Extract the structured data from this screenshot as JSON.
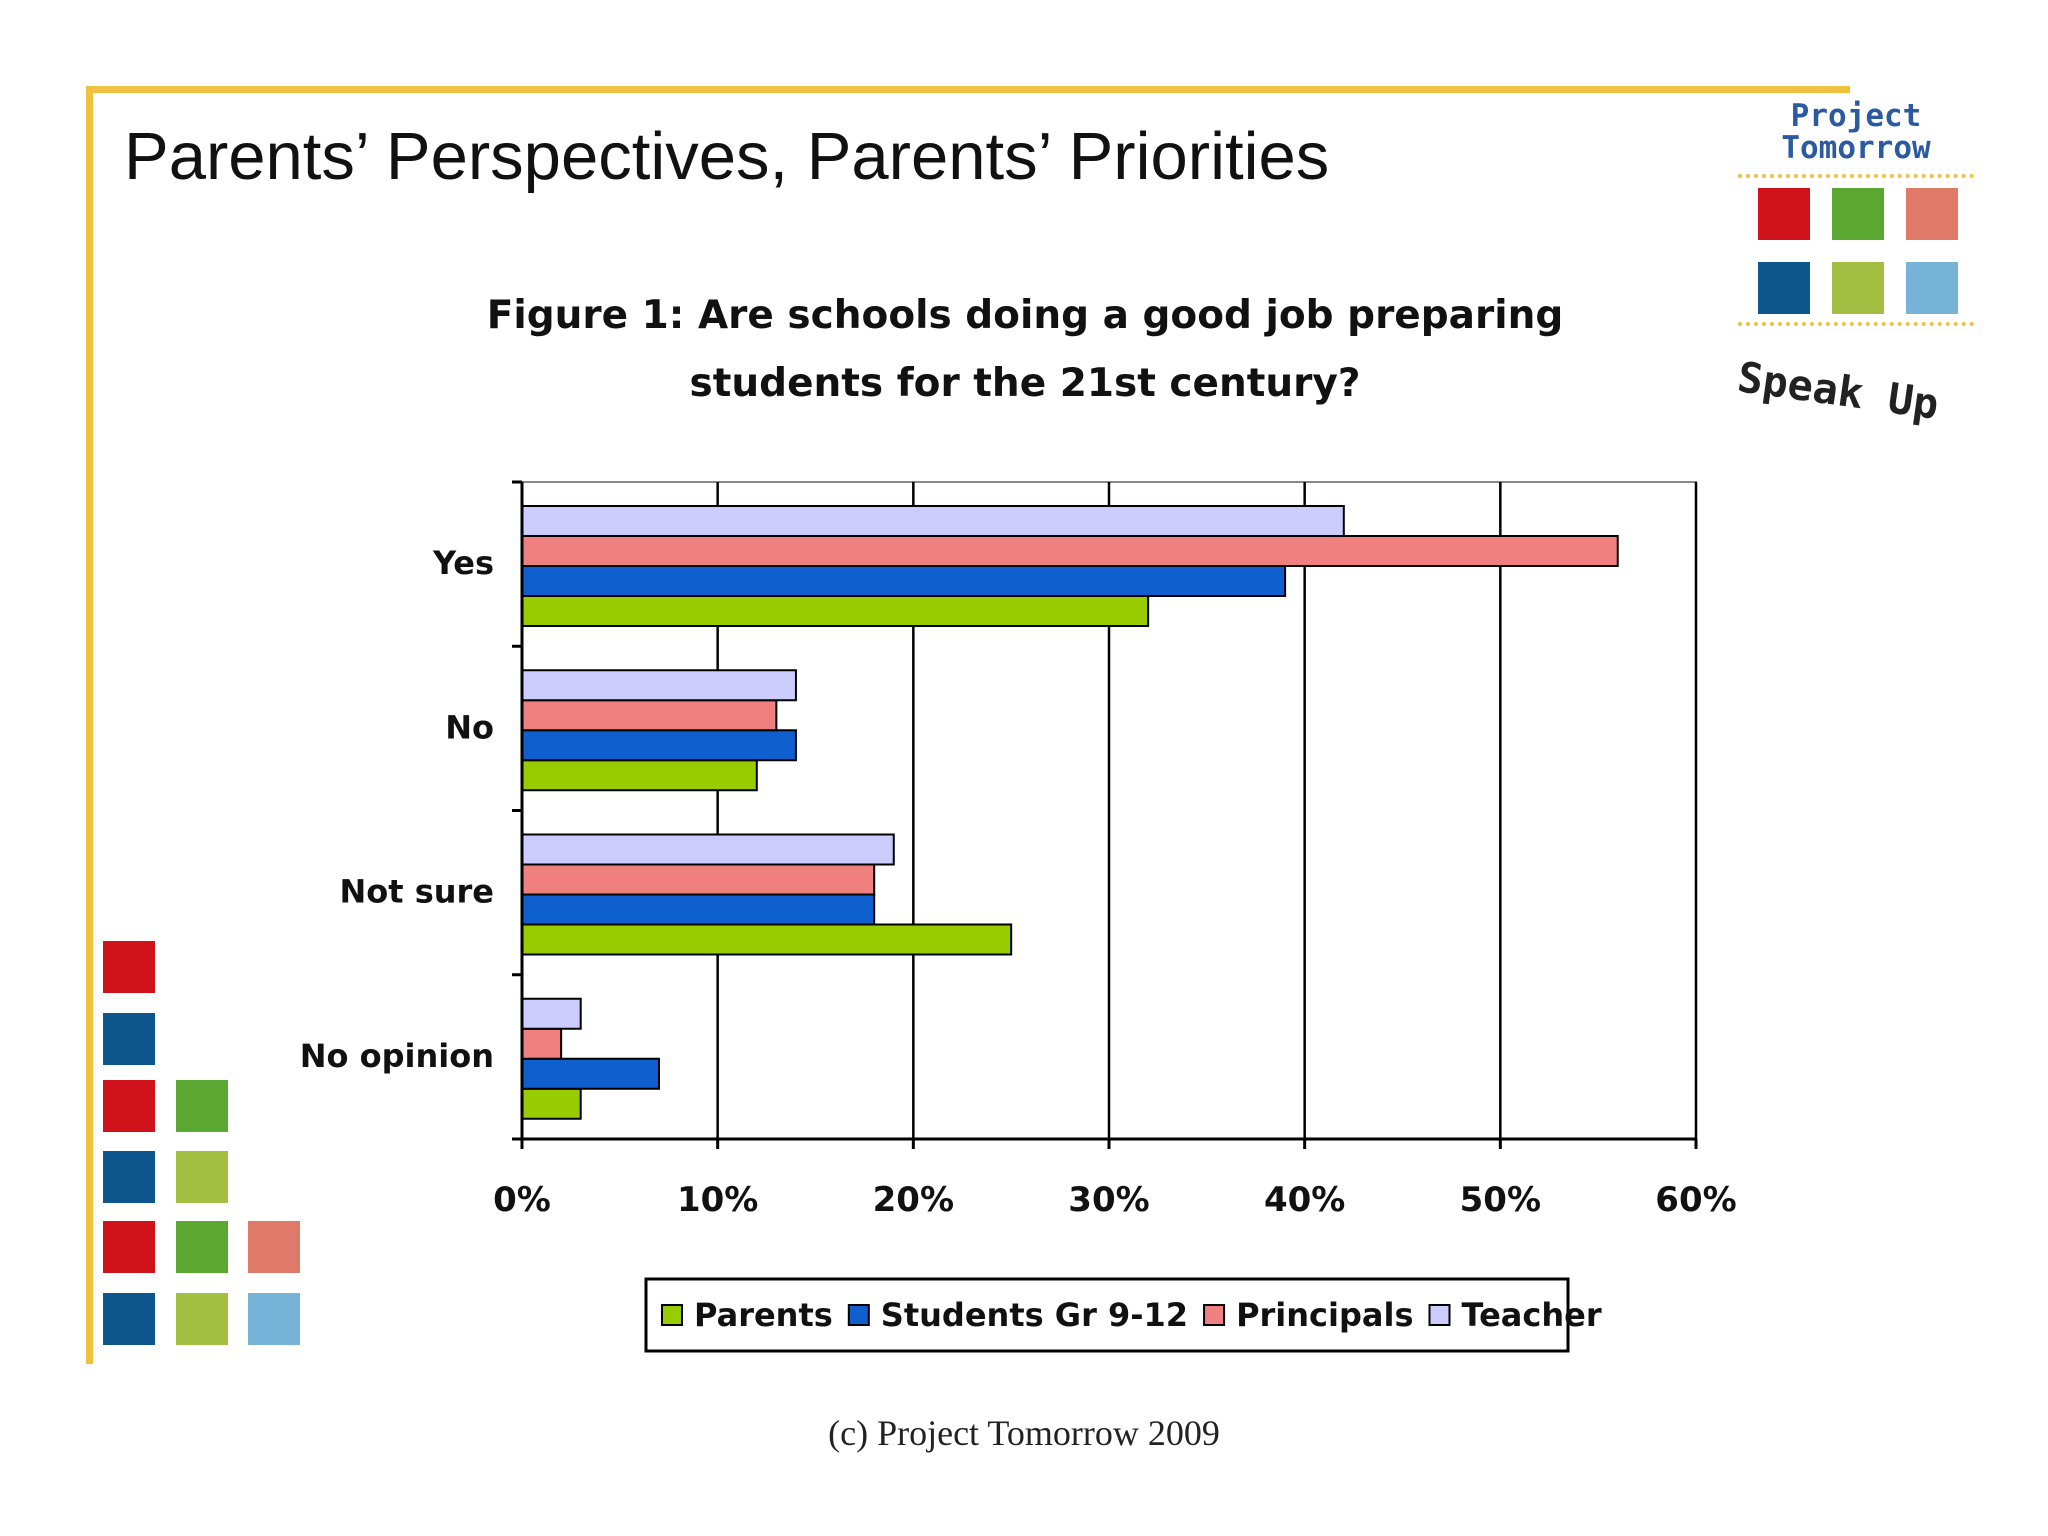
{
  "slide": {
    "title": "Parents’ Perspectives, Parents’ Priorities",
    "footer": "(c) Project Tomorrow 2009"
  },
  "logo": {
    "name_line1": "Project",
    "name_line2": "Tomorrow",
    "tagline": "Speak Up",
    "square_colors": [
      "#d0121b",
      "#5aa832",
      "#e07a68",
      "#0e568e",
      "#a3bf42",
      "#77b2d8"
    ]
  },
  "decor": {
    "square_colors": {
      "red": "#d0121b",
      "blue": "#0e568e",
      "green": "#5aa832",
      "lime": "#a3bf42",
      "salmon": "#e07a68",
      "skyblue": "#77b2d8"
    }
  },
  "chart_data": {
    "type": "bar",
    "orientation": "horizontal",
    "title_line1": "Figure 1: Are schools doing a good job preparing",
    "title_line2": "students for the 21st century?",
    "categories": [
      "Yes",
      "No",
      "Not sure",
      "No opinion"
    ],
    "series": [
      {
        "name": "Parents",
        "color": "#99cc00",
        "values": [
          32,
          12,
          25,
          3
        ]
      },
      {
        "name": "Students Gr 9-12",
        "color": "#0f5fcf",
        "values": [
          39,
          14,
          18,
          7
        ]
      },
      {
        "name": "Principals",
        "color": "#f08080",
        "values": [
          56,
          13,
          18,
          2
        ]
      },
      {
        "name": "Teacher",
        "color": "#ccccff",
        "values": [
          42,
          14,
          19,
          3
        ]
      }
    ],
    "xlim": [
      0,
      60
    ],
    "xticks": [
      0,
      10,
      20,
      30,
      40,
      50,
      60
    ],
    "tick_suffix": "%",
    "grid": true,
    "legend": "bottom"
  }
}
